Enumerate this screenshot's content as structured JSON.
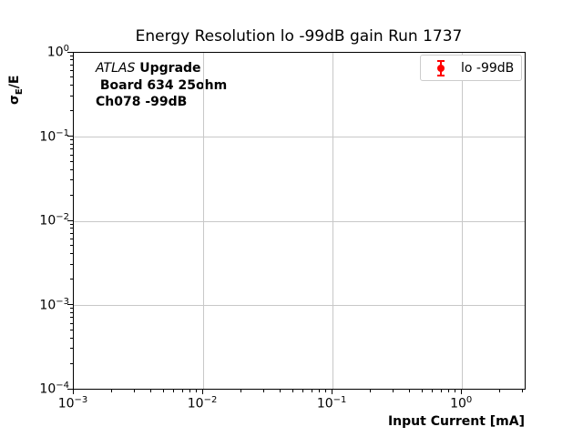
{
  "figure": {
    "title": "Energy Resolution lo -99dB gain Run 1737"
  },
  "ylabel_parts": {
    "sigma": "σ",
    "sub": "E",
    "rest": "/E"
  },
  "annotation": {
    "line1_italic": "ATLAS",
    "line1_bold": " Upgrade",
    "line2": " Board 634 25ohm",
    "line3": "Ch078 -99dB"
  },
  "legend": {
    "label": "lo -99dB"
  },
  "chart_data": {
    "type": "scatter",
    "title": "Energy Resolution lo -99dB gain Run 1737",
    "xlabel": "Input Current [mA]",
    "ylabel": "σ_E/E",
    "xscale": "log",
    "yscale": "log",
    "xlim": [
      0.001,
      3.1
    ],
    "ylim": [
      0.0001,
      1.0
    ],
    "x_tick_exponents": [
      -3,
      -2,
      -1,
      0
    ],
    "x_tick_labels": [
      "10⁻³",
      "10⁻²",
      "10⁻¹",
      "10⁰"
    ],
    "y_tick_exponents": [
      0,
      -1,
      -2,
      -3,
      -4
    ],
    "y_tick_labels": [
      "10⁰",
      "10⁻¹",
      "10⁻²",
      "10⁻³",
      "10⁻⁴"
    ],
    "grid": true,
    "legend_position": "upper right",
    "series": [
      {
        "name": "lo -99dB",
        "color": "#ff0000",
        "marker": "errorbar-circle",
        "x": [],
        "y": []
      }
    ],
    "annotations": [
      "ATLAS Upgrade",
      "Board 634 25ohm",
      "Ch078 -99dB"
    ]
  },
  "colors": {
    "background": "#ffffff",
    "grid": "#c8c8c8",
    "spine": "#000000",
    "marker": "#ff0000",
    "legend_border": "#cccccc",
    "text": "#000000"
  }
}
